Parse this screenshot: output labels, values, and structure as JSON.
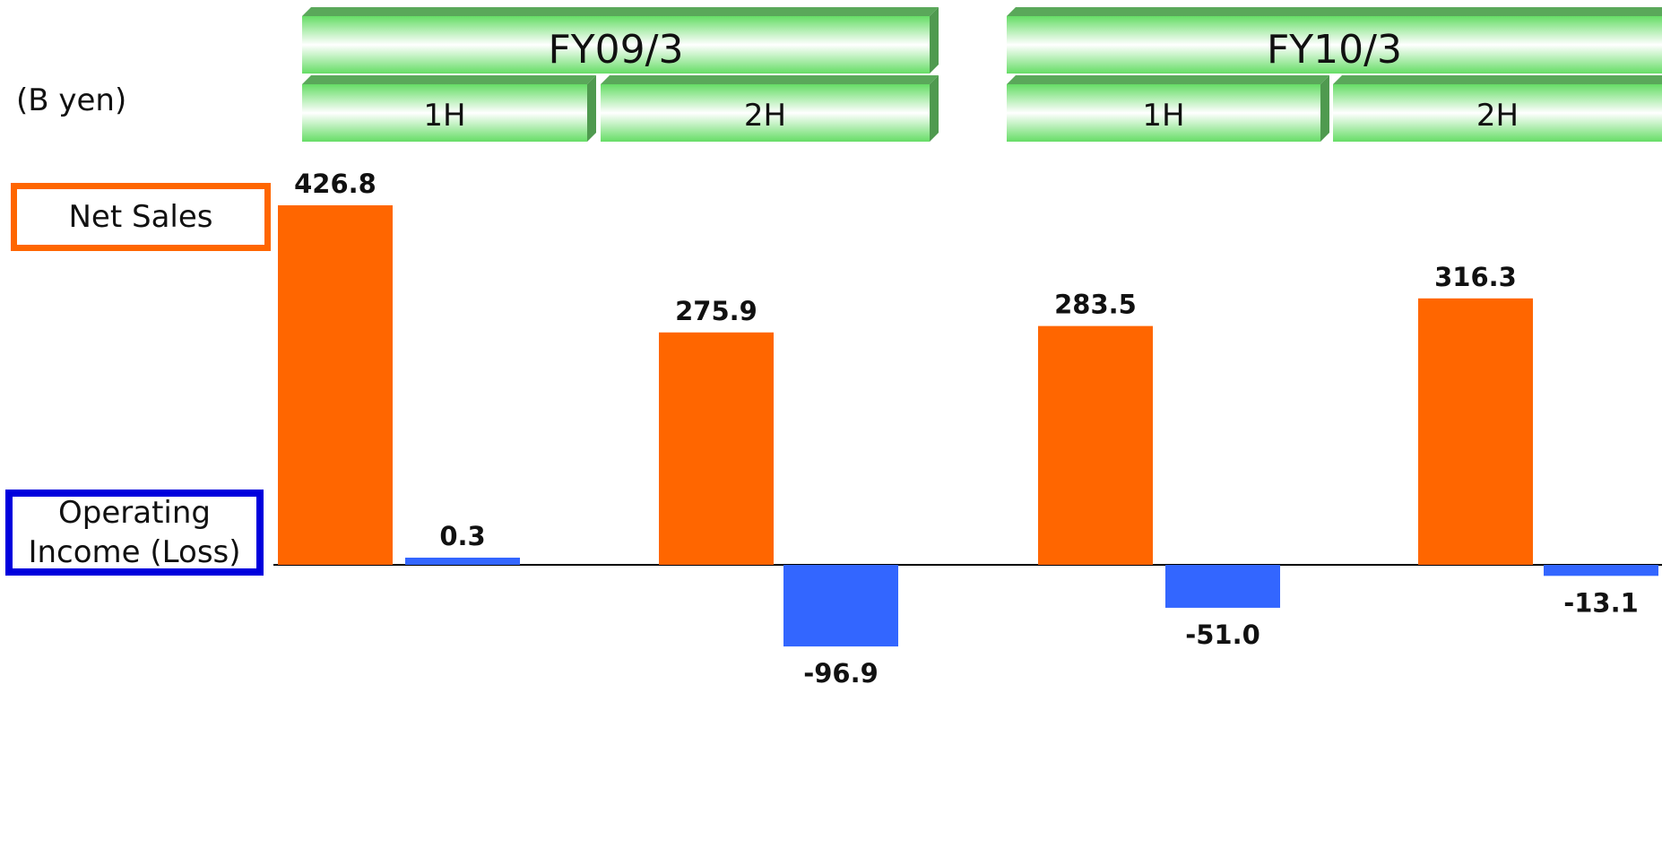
{
  "unit_label": "(B yen)",
  "legend": {
    "net_sales": "Net Sales",
    "operating_income": "Operating Income (Loss)"
  },
  "fiscal_years": [
    {
      "label": "FY09/3",
      "halves": [
        "1H",
        "2H"
      ]
    },
    {
      "label": "FY10/3",
      "halves": [
        "1H",
        "2H"
      ]
    }
  ],
  "colors": {
    "net_sales": "#ff6600",
    "operating_income": "#3366ff",
    "header_green": "#66cc66"
  },
  "chart_data": {
    "type": "bar",
    "categories": [
      "FY09/3 1H",
      "FY09/3 2H",
      "FY10/3 1H",
      "FY10/3 2H"
    ],
    "series": [
      {
        "name": "Net Sales",
        "values": [
          426.8,
          275.9,
          283.5,
          316.3
        ]
      },
      {
        "name": "Operating Income (Loss)",
        "values": [
          0.3,
          -96.9,
          -51.0,
          -13.1
        ]
      }
    ],
    "value_labels": {
      "Net Sales": [
        "426.8",
        "275.9",
        "283.5",
        "316.3"
      ],
      "Operating Income (Loss)": [
        "0.3",
        "-96.9",
        "-51.0",
        "-13.1"
      ]
    },
    "title": "",
    "xlabel": "",
    "ylabel": "",
    "grid": false,
    "legend_position": "left"
  }
}
